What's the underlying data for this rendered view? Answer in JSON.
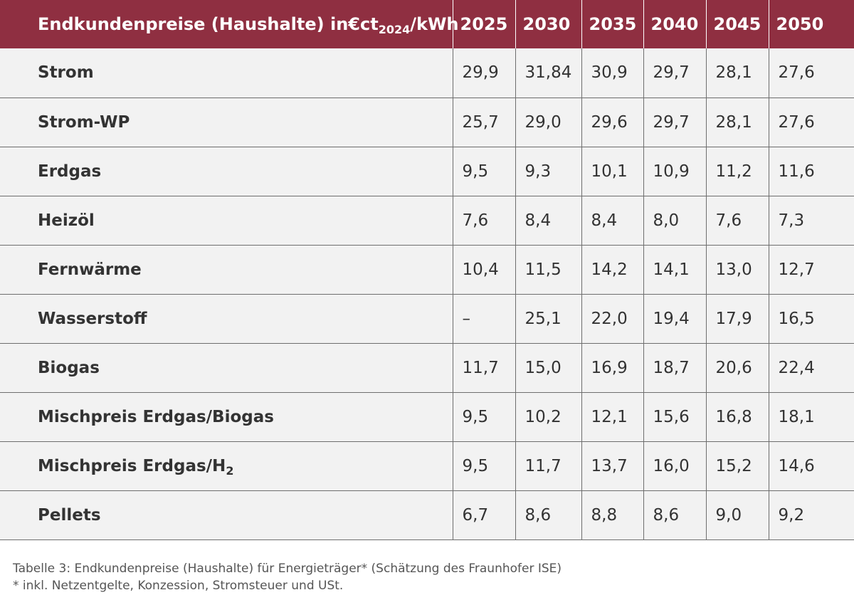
{
  "table": {
    "header": {
      "label_main": "Endkundenpreise (Haushalte) in€ct",
      "label_sub": "2024",
      "label_unit": "/kWh",
      "years": [
        "2025",
        "2030",
        "2035",
        "2040",
        "2045",
        "2050"
      ]
    },
    "rows": [
      {
        "label": "Strom",
        "label_sub": "",
        "values": [
          "29,9",
          "31,84",
          "30,9",
          "29,7",
          "28,1",
          "27,6"
        ]
      },
      {
        "label": "Strom-WP",
        "label_sub": "",
        "values": [
          "25,7",
          "29,0",
          "29,6",
          "29,7",
          "28,1",
          "27,6"
        ]
      },
      {
        "label": "Erdgas",
        "label_sub": "",
        "values": [
          "9,5",
          "9,3",
          "10,1",
          "10,9",
          "11,2",
          "11,6"
        ]
      },
      {
        "label": "Heizöl",
        "label_sub": "",
        "values": [
          "7,6",
          "8,4",
          "8,4",
          "8,0",
          "7,6",
          "7,3"
        ]
      },
      {
        "label": "Fernwärme",
        "label_sub": "",
        "values": [
          "10,4",
          "11,5",
          "14,2",
          "14,1",
          "13,0",
          "12,7"
        ]
      },
      {
        "label": "Wasserstoff",
        "label_sub": "",
        "values": [
          "–",
          "25,1",
          "22,0",
          "19,4",
          "17,9",
          "16,5"
        ]
      },
      {
        "label": "Biogas",
        "label_sub": "",
        "values": [
          "11,7",
          "15,0",
          "16,9",
          "18,7",
          "20,6",
          "22,4"
        ]
      },
      {
        "label": "Mischpreis Erdgas/Biogas",
        "label_sub": "",
        "values": [
          "9,5",
          "10,2",
          "12,1",
          "15,6",
          "16,8",
          "18,1"
        ]
      },
      {
        "label": "Mischpreis Erdgas/H",
        "label_sub": "2",
        "values": [
          "9,5",
          "11,7",
          "13,7",
          "16,0",
          "15,2",
          "14,6"
        ]
      },
      {
        "label": "Pellets",
        "label_sub": "",
        "values": [
          "6,7",
          "8,6",
          "8,8",
          "8,6",
          "9,0",
          "9,2"
        ]
      }
    ]
  },
  "caption": {
    "line1": "Tabelle 3: Endkundenpreise (Haushalte) für Energieträger* (Schätzung des Fraunhofer ISE)",
    "line2": "* inkl. Netzentgelte, Konzession, Stromsteuer und USt."
  },
  "colors": {
    "header_background": "#8f2f41",
    "row_background": "#f2f2f2"
  }
}
